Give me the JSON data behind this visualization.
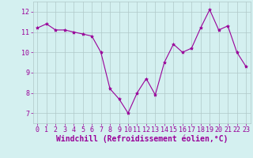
{
  "x": [
    0,
    1,
    2,
    3,
    4,
    5,
    6,
    7,
    8,
    9,
    10,
    11,
    12,
    13,
    14,
    15,
    16,
    17,
    18,
    19,
    20,
    21,
    22,
    23
  ],
  "y": [
    11.2,
    11.4,
    11.1,
    11.1,
    11.0,
    10.9,
    10.8,
    10.0,
    8.2,
    7.7,
    7.0,
    8.0,
    8.7,
    7.9,
    9.5,
    10.4,
    10.0,
    10.2,
    11.2,
    12.1,
    11.1,
    11.3,
    10.0,
    9.3
  ],
  "line_color": "#990099",
  "marker": "*",
  "marker_size": 3,
  "bg_color": "#d4f0f0",
  "grid_color": "#b0c8c8",
  "xlabel": "Windchill (Refroidissement éolien,°C)",
  "xlabel_color": "#990099",
  "xlabel_fontsize": 7,
  "tick_color": "#990099",
  "tick_fontsize": 6,
  "ylim": [
    6.5,
    12.5
  ],
  "xlim": [
    -0.5,
    23.5
  ],
  "yticks": [
    7,
    8,
    9,
    10,
    11,
    12
  ],
  "xticks": [
    0,
    1,
    2,
    3,
    4,
    5,
    6,
    7,
    8,
    9,
    10,
    11,
    12,
    13,
    14,
    15,
    16,
    17,
    18,
    19,
    20,
    21,
    22,
    23
  ]
}
